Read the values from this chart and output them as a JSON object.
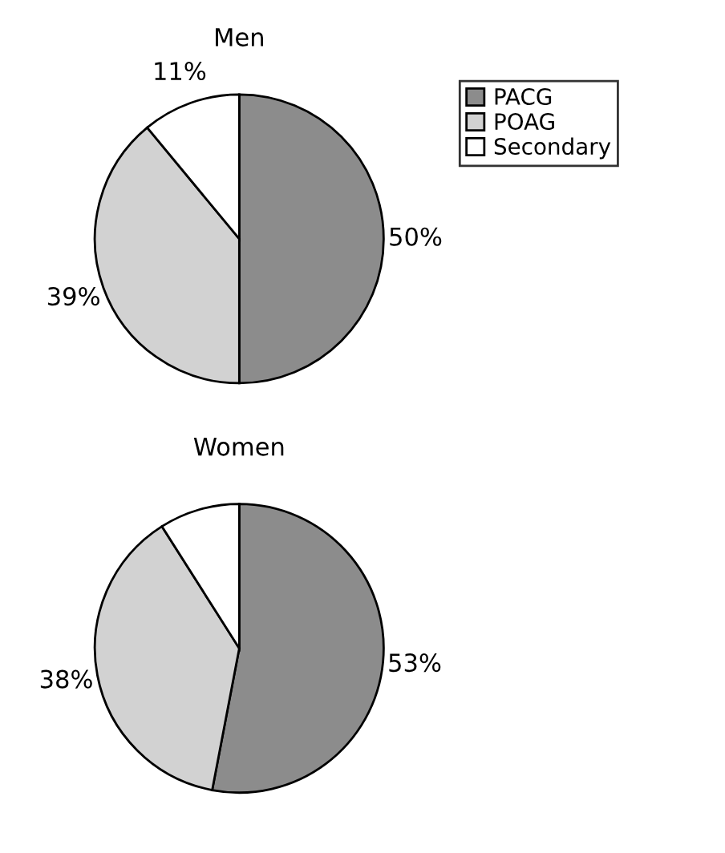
{
  "chart_data": [
    {
      "type": "pie",
      "title": "Men",
      "categories": [
        "PACG",
        "POAG",
        "Secondary"
      ],
      "values": [
        50,
        39,
        11
      ],
      "colors": [
        "#8c8c8c",
        "#d2d2d2",
        "#ffffff"
      ],
      "value_labels": [
        "50%",
        "39%",
        "11%"
      ],
      "legend": "right"
    },
    {
      "type": "pie",
      "title": "Women",
      "categories": [
        null,
        null,
        null
      ],
      "values": [
        53,
        38,
        9
      ],
      "colors": [
        "#8c8c8c",
        "#d2d2d2",
        "#ffffff"
      ],
      "value_labels": [
        "53%",
        "38%",
        null
      ]
    }
  ]
}
